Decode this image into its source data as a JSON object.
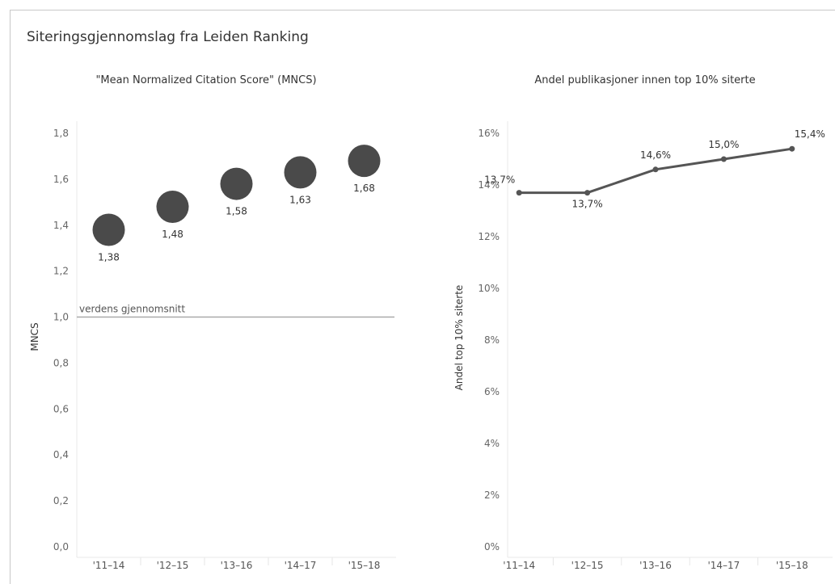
{
  "page": {
    "title": "Siteringsgjennomslag fra Leiden Ranking"
  },
  "chart_data": [
    {
      "type": "scatter",
      "title": "\"Mean Normalized Citation Score\" (MNCS)",
      "xlabel": "",
      "ylabel": "MNCS",
      "categories": [
        "'11–14",
        "'12–15",
        "'13–16",
        "'14–17",
        "'15–18"
      ],
      "values": [
        1.38,
        1.48,
        1.58,
        1.63,
        1.68
      ],
      "data_labels": [
        "1,38",
        "1,48",
        "1,58",
        "1,63",
        "1,68"
      ],
      "ylim": [
        0,
        1.8
      ],
      "yticks": [
        0,
        0.2,
        0.4,
        0.6,
        0.8,
        1.0,
        1.2,
        1.4,
        1.6,
        1.8
      ],
      "ytick_labels": [
        "0,0",
        "0,2",
        "0,4",
        "0,6",
        "0,8",
        "1,0",
        "1,2",
        "1,4",
        "1,6",
        "1,8"
      ],
      "reference_line": {
        "value": 1.0,
        "label": "verdens gjennomsnitt"
      },
      "grid": false,
      "marker_color": "#4a4a4a"
    },
    {
      "type": "line",
      "title": "Andel publikasjoner innen top 10% siterte",
      "xlabel": "",
      "ylabel": "Andel top 10% siterte",
      "categories": [
        "'11–14",
        "'12–15",
        "'13–16",
        "'14–17",
        "'15–18"
      ],
      "values": [
        13.7,
        13.7,
        14.6,
        15.0,
        15.4
      ],
      "data_labels": [
        "13,7%",
        "13,7%",
        "14,6%",
        "15,0%",
        "15,4%"
      ],
      "ylim": [
        0,
        16
      ],
      "yticks": [
        0,
        2,
        4,
        6,
        8,
        10,
        12,
        14,
        16
      ],
      "ytick_labels": [
        "0%",
        "2%",
        "4%",
        "6%",
        "8%",
        "10%",
        "12%",
        "14%",
        "16%"
      ],
      "grid": false,
      "line_color": "#555555"
    }
  ]
}
